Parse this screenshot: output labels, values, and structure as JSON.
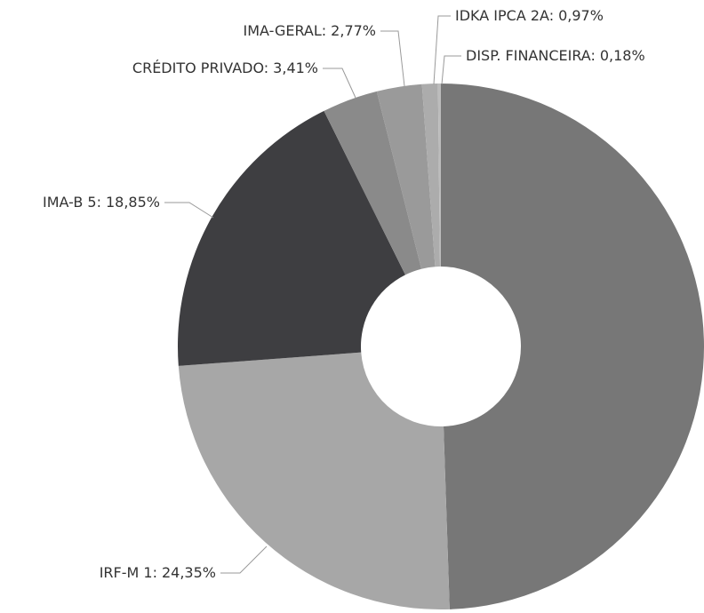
{
  "chart_data": {
    "type": "pie",
    "categories": [
      null,
      "IRF-M 1:",
      "IMA-B 5:",
      "CRÉDITO PRIVADO:",
      "IMA-GERAL:",
      "IDKA IPCA 2A:",
      "DISP. FINANCEIRA:"
    ],
    "values": [
      49.47,
      24.35,
      18.85,
      3.41,
      2.77,
      0.97,
      0.18
    ],
    "value_labels": [
      null,
      "24,35%",
      "18,85%",
      "3,41%",
      "2,77%",
      "0,97%",
      "0,18%"
    ],
    "colors": [
      "#777777",
      "#a7a7a7",
      "#3e3e41",
      "#8a8a8a",
      "#9a9a9a",
      "#acacac",
      "#bcbcbc"
    ]
  }
}
